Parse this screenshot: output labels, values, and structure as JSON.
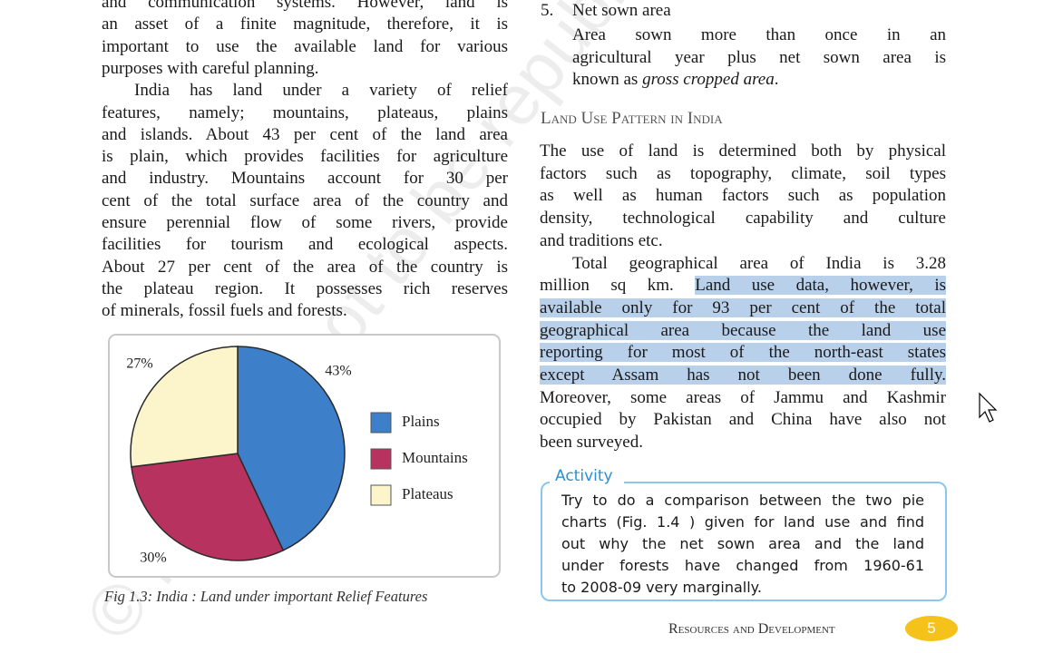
{
  "left_column": {
    "paragraphs": [
      {
        "lines": [
          "and communication systems. However, land is",
          "an asset of a finite magnitude, therefore, it is",
          "important to use the available land for various",
          "purposes with careful planning."
        ]
      },
      {
        "lines": [
          "India has land under a variety of relief",
          "features, namely; mountains, plateaus, plains",
          "and islands. About 43 per cent of the land area",
          "is plain, which provides facilities for agriculture",
          "and industry. Mountains account for 30 per",
          "cent of the total surface area of the country and",
          "ensure perennial flow of some rivers, provide",
          "facilities for tourism and ecological aspects.",
          "About  27 per cent of the area of the country is",
          "the plateau region. It possesses rich reserves",
          "of minerals, fossil fuels and forests."
        ]
      }
    ]
  },
  "chart_data": {
    "type": "pie",
    "categories": [
      "Plains",
      "Mountains",
      "Plateaus"
    ],
    "values": [
      43,
      30,
      27
    ],
    "value_labels": [
      "43%",
      "30%",
      "27%"
    ],
    "colors": [
      "#3d7fc9",
      "#b8325f",
      "#fcf5cc"
    ],
    "legend": "right"
  },
  "figure_caption": "Fig 1.3: India :  Land under important Relief Features",
  "right_column": {
    "list_item": {
      "number": "5.",
      "title": "Net sown area",
      "lines": [
        "Area sown more than once in an",
        "agricultural year plus net sown area is",
        [
          "known as ",
          {
            "text": "gross cropped area",
            "italic": true
          },
          "."
        ]
      ]
    },
    "heading": "Land Use Pattern in India",
    "paragraphs": [
      {
        "lines": [
          "The use of land is determined both by physical",
          "factors such as topography, climate, soil types",
          "as well as human factors such as population",
          "density, technological capability and culture",
          "and traditions etc."
        ]
      },
      {
        "lines": [
          "Total geographical area of India is 3.28",
          [
            "million sq km. ",
            {
              "text": "Land use data, however, is",
              "highlight": true
            }
          ],
          [
            {
              "text": "available only for 93 per cent of the total",
              "highlight": true
            }
          ],
          [
            {
              "text": "geographical area because the land use",
              "highlight": true
            }
          ],
          [
            {
              "text": "reporting for most of the north-east states",
              "highlight": true
            }
          ],
          [
            {
              "text": "except Assam has not been done fully.",
              "highlight": true
            }
          ],
          "Moreover, some areas of Jammu and Kashmir",
          "occupied by Pakistan and China have also not",
          "been surveyed."
        ]
      }
    ]
  },
  "activity": {
    "title": "Activity",
    "lines": [
      "Try to do a comparison between the two pie",
      "charts (Fig. 1.4 ) given for land use and find",
      "out why the net sown area and the land",
      "under forests have changed from 1960-61",
      "to 2008-09 very marginally."
    ]
  },
  "footer": {
    "running_title": "Resources and Development",
    "page_number": 5
  },
  "watermark": "© NCERT not to be republished"
}
